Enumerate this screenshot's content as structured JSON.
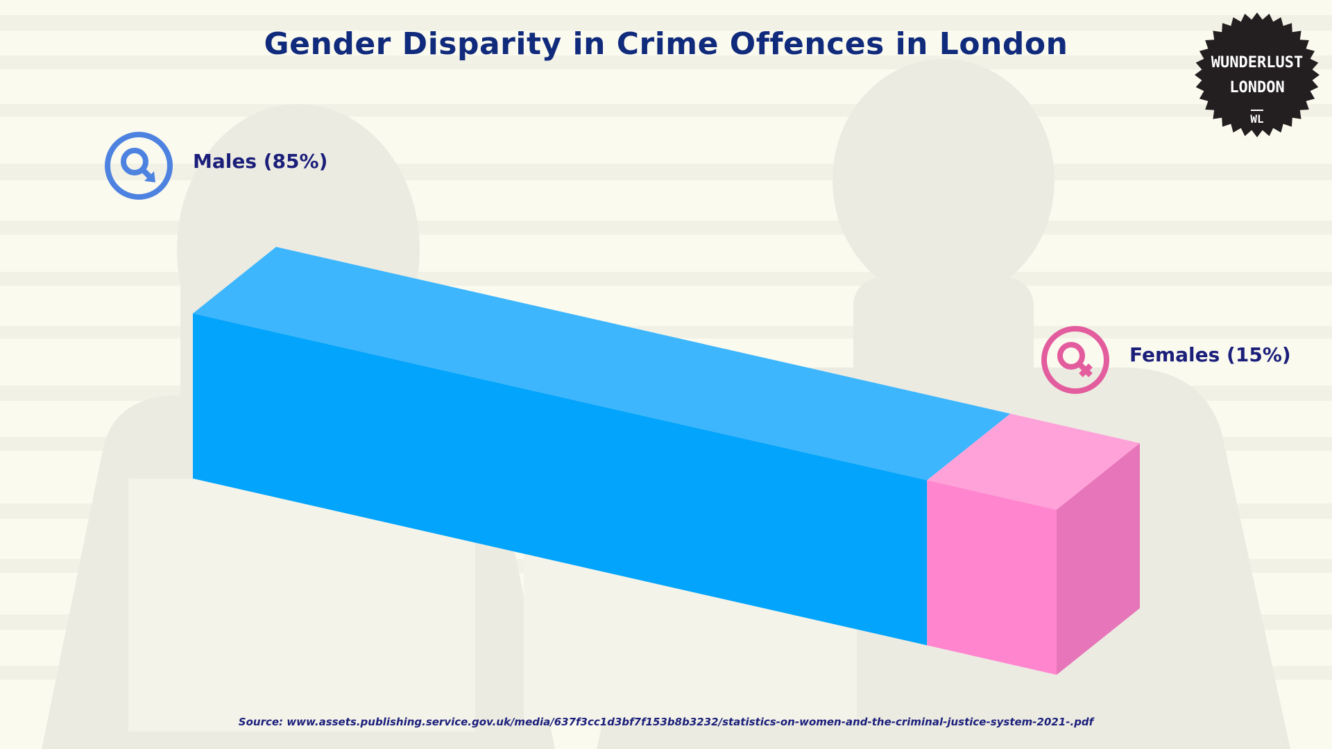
{
  "chart_data": {
    "type": "bar",
    "title": "Gender Disparity in Crime Offences in London",
    "orientation": "horizontal-stacked-3d",
    "total": 100,
    "series": [
      {
        "name": "Males",
        "label": "Males (85%)",
        "value": 85,
        "color_front": "#03a4fb",
        "color_top": "#3db6fd"
      },
      {
        "name": "Females",
        "label": "Females (15%)",
        "value": 15,
        "color_front": "#ff85cf",
        "color_top": "#ffa2d9",
        "color_side": "#e676b9"
      }
    ]
  },
  "source_note": "Source: www.assets.publishing.service.gov.uk/media/637f3cc1d3bf7f153b8b3232/statistics-on-women-and-the-criminal-justice-system-2021-.pdf",
  "logo": {
    "line1": "WUNDERLUST",
    "line2": "LONDON",
    "line3": "WL"
  },
  "icons": {
    "male": "male-symbol-icon",
    "female": "female-symbol-icon"
  },
  "colors": {
    "title": "#102a7c",
    "male_icon": "#4d82e0",
    "female_icon": "#e35c9d",
    "background": "#fbfaef",
    "silhouette": "#eeeee6"
  }
}
